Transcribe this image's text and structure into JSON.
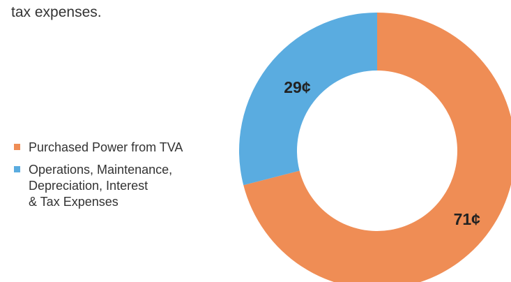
{
  "intro": {
    "text": "tax expenses."
  },
  "colors": {
    "purchased_power": "#EF8D55",
    "operations": "#5AACE0"
  },
  "chart_data": {
    "type": "pie",
    "categories": [
      "Purchased Power from TVA",
      "Operations, Maintenance,\nDepreciation, Interest\n& Tax Expenses"
    ],
    "values": [
      71,
      29
    ],
    "data_labels": [
      "71¢",
      "29¢"
    ],
    "colors": [
      "#EF8D55",
      "#5AACE0"
    ],
    "legend_position": "left",
    "donut": true
  }
}
